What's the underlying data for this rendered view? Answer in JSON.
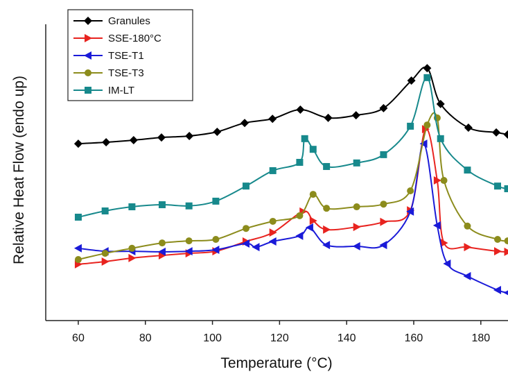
{
  "chart_data": {
    "type": "line",
    "x_label": "Temperature (°C)",
    "y_label": "Relative Heat Flow (endo up)",
    "xlim": [
      50.3,
      188.1
    ],
    "ylim": [
      0,
      100
    ],
    "xticks": [
      60,
      80,
      100,
      120,
      140,
      160,
      180
    ],
    "legend": "upper left",
    "series": [
      {
        "name": "Granules",
        "color": "#000000",
        "marker": "diamond",
        "x": [
          60,
          68.3,
          76.5,
          84.8,
          93.1,
          101.4,
          109.6,
          117.9,
          126.2,
          134.5,
          142.8,
          151.0,
          159.3,
          164,
          168,
          176.3,
          184.6,
          188
        ],
        "values": [
          59.7,
          60.2,
          60.9,
          61.8,
          62.3,
          63.7,
          66.7,
          68.1,
          71.2,
          68.4,
          69.3,
          71.7,
          81.0,
          85.2,
          73.1,
          65.1,
          63.5,
          62.8
        ]
      },
      {
        "name": "SSE-180°C",
        "color": "#e8231f",
        "marker": "triangle-right",
        "x": [
          60,
          68,
          76,
          85,
          93,
          101,
          110,
          118,
          127,
          130,
          134,
          143,
          151,
          159,
          163.5,
          167,
          169,
          176,
          185,
          188
        ],
        "values": [
          19.0,
          19.9,
          21.1,
          22.0,
          22.7,
          23.4,
          26.7,
          29.7,
          36.8,
          33.7,
          30.7,
          31.6,
          33.3,
          37.2,
          64.6,
          47.3,
          26.2,
          24.8,
          23.4,
          23.2
        ]
      },
      {
        "name": "TSE-T1",
        "color": "#1a1ad8",
        "marker": "triangle-left",
        "x": [
          60,
          68,
          76,
          85,
          93,
          101,
          110,
          113,
          118,
          126,
          129,
          134,
          143,
          151,
          159,
          163,
          167,
          170,
          176,
          185,
          188
        ],
        "values": [
          24.4,
          23.4,
          23.4,
          23.2,
          23.4,
          23.9,
          26.0,
          24.8,
          26.7,
          28.6,
          31.4,
          25.5,
          25.1,
          25.5,
          36.8,
          59.7,
          32.1,
          19.2,
          15.0,
          10.3,
          9.4
        ]
      },
      {
        "name": "TSE-T3",
        "color": "#8c8c1c",
        "marker": "circle",
        "x": [
          60,
          68,
          76,
          85,
          93,
          101,
          110,
          118,
          126,
          130,
          134,
          143,
          151,
          159,
          164,
          167,
          169,
          176,
          185,
          188
        ],
        "values": [
          20.6,
          22.7,
          24.4,
          26.2,
          26.9,
          27.4,
          31.1,
          33.5,
          35.4,
          42.6,
          37.9,
          38.4,
          39.3,
          43.8,
          66.0,
          68.4,
          47.3,
          31.9,
          27.4,
          26.9
        ]
      },
      {
        "name": "IM-LT",
        "color": "#17898c",
        "marker": "square",
        "x": [
          60,
          68,
          76,
          85,
          93,
          101,
          110,
          118,
          126,
          127.5,
          130,
          134,
          143,
          151,
          159,
          164,
          168,
          176,
          185,
          188
        ],
        "values": [
          34.9,
          37.0,
          38.4,
          39.1,
          38.7,
          40.3,
          45.4,
          50.6,
          53.4,
          61.4,
          57.8,
          52.0,
          53.2,
          56.0,
          65.6,
          82.0,
          61.4,
          50.8,
          45.4,
          44.5
        ]
      }
    ]
  }
}
